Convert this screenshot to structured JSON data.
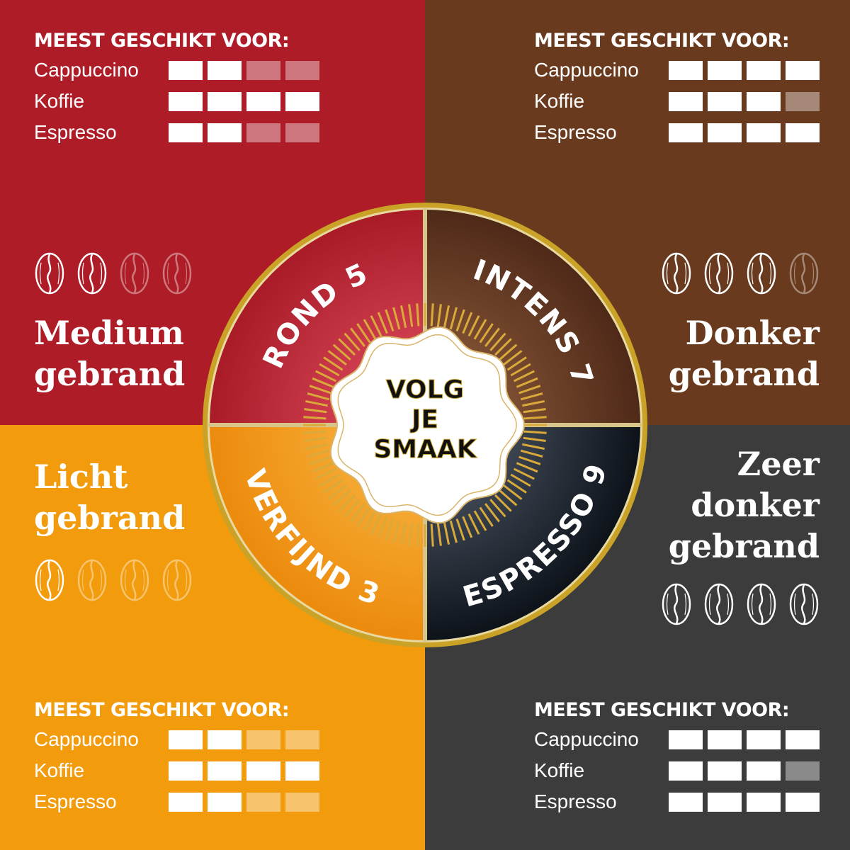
{
  "heading": "MEEST GESCHIKT VOOR:",
  "drinks": [
    "Cappuccino",
    "Koffie",
    "Espresso"
  ],
  "center_text": [
    "VOLG",
    "JE",
    "SMAAK"
  ],
  "colors": {
    "red": "#ae1c27",
    "brown": "#693a1d",
    "orange": "#f29b0c",
    "gray": "#3d3c3c",
    "gold": "#c9a227"
  },
  "quadrants": [
    {
      "roast": "Medium\ngebrand",
      "wheel_label": "ROND 5",
      "beans_filled": 2,
      "beans_total": 4,
      "ratings": [
        2,
        4,
        2
      ],
      "max_rating": 4
    },
    {
      "roast": "Donker\ngebrand",
      "wheel_label": "INTENS 7",
      "beans_filled": 3,
      "beans_total": 4,
      "ratings": [
        4,
        3,
        4
      ],
      "max_rating": 4
    },
    {
      "roast": "Licht\ngebrand",
      "wheel_label": "VERFIJND 3",
      "beans_filled": 1,
      "beans_total": 4,
      "ratings": [
        2,
        4,
        2
      ],
      "max_rating": 4
    },
    {
      "roast": "Zeer\ndonker\ngebrand",
      "wheel_label": "ESPRESSO 9",
      "beans_filled": 4,
      "beans_total": 4,
      "ratings": [
        4,
        3,
        4
      ],
      "max_rating": 4
    }
  ]
}
